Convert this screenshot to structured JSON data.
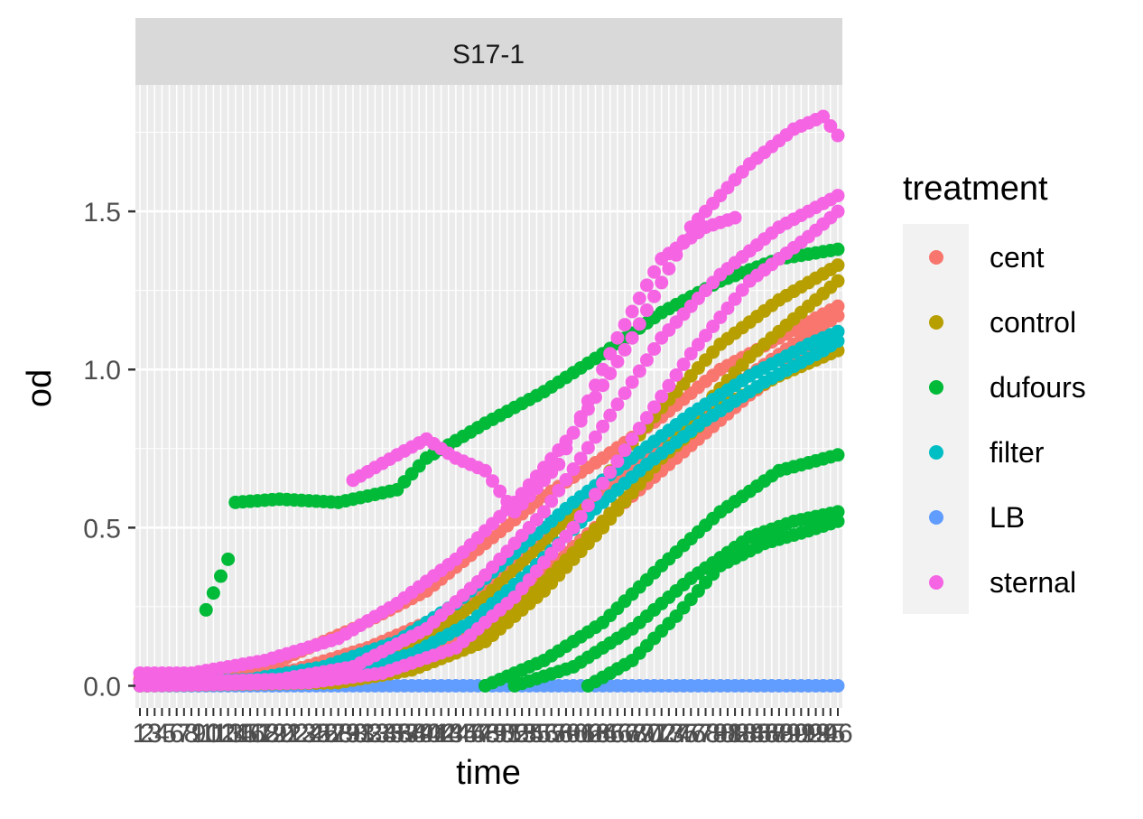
{
  "chart_data": {
    "type": "scatter",
    "facet_label": "S17-1",
    "xlabel": "time",
    "ylabel": "od",
    "ylim": [
      -0.07,
      1.9
    ],
    "yticks": [
      0.0,
      0.5,
      1.0,
      1.5
    ],
    "ytick_labels": [
      "0.0",
      "0.5",
      "1.0",
      "1.5"
    ],
    "x_categories_count": 96,
    "x_tick_labels_note": "overlapping categorical time labels (illegible)",
    "legend": {
      "title": "treatment",
      "position": "right",
      "entries": [
        {
          "label": "cent",
          "color": "#F8766D"
        },
        {
          "label": "control",
          "color": "#B79F00"
        },
        {
          "label": "dufours",
          "color": "#00BA38"
        },
        {
          "label": "filter",
          "color": "#00BFC4"
        },
        {
          "label": "LB",
          "color": "#619CFF"
        },
        {
          "label": "sternal",
          "color": "#F564E3"
        }
      ]
    },
    "grid": true,
    "series": [
      {
        "treatment": "LB",
        "curves": [
          {
            "x": [
              1,
              96
            ],
            "y": [
              0.0,
              0.0
            ]
          }
        ]
      },
      {
        "treatment": "cent",
        "curves": [
          {
            "x": [
              1,
              10,
              20,
              30,
              40,
              48,
              56,
              64,
              72,
              80,
              88,
              96
            ],
            "y": [
              0.02,
              0.03,
              0.08,
              0.18,
              0.3,
              0.45,
              0.6,
              0.72,
              0.85,
              1.0,
              1.1,
              1.2
            ]
          },
          {
            "x": [
              1,
              12,
              22,
              32,
              42,
              50,
              58,
              66,
              74,
              82,
              90,
              96
            ],
            "y": [
              0.01,
              0.02,
              0.05,
              0.12,
              0.22,
              0.35,
              0.5,
              0.65,
              0.8,
              0.95,
              1.08,
              1.17
            ]
          },
          {
            "x": [
              1,
              14,
              24,
              34,
              44,
              52,
              60,
              68,
              76,
              84,
              92,
              96
            ],
            "y": [
              0.0,
              0.01,
              0.03,
              0.08,
              0.16,
              0.28,
              0.44,
              0.6,
              0.76,
              0.92,
              1.05,
              1.12
            ]
          }
        ]
      },
      {
        "treatment": "control",
        "curves": [
          {
            "x": [
              1,
              20,
              30,
              40,
              48,
              56,
              64,
              72,
              80,
              88,
              96
            ],
            "y": [
              0.0,
              0.01,
              0.05,
              0.15,
              0.28,
              0.45,
              0.65,
              0.88,
              1.08,
              1.22,
              1.33
            ]
          },
          {
            "x": [
              1,
              24,
              34,
              44,
              52,
              60,
              68,
              76,
              84,
              92,
              96
            ],
            "y": [
              0.0,
              0.01,
              0.04,
              0.12,
              0.24,
              0.42,
              0.62,
              0.84,
              1.04,
              1.2,
              1.28
            ]
          },
          {
            "x": [
              1,
              28,
              38,
              48,
              56,
              64,
              72,
              80,
              88,
              96
            ],
            "y": [
              0.0,
              0.01,
              0.05,
              0.14,
              0.3,
              0.5,
              0.72,
              0.88,
              0.98,
              1.06
            ]
          }
        ]
      },
      {
        "treatment": "dufours",
        "curves": [
          {
            "x": [
              10,
              13,
              14,
              20,
              28,
              32,
              36,
              40,
              48,
              56,
              64,
              72,
              80,
              88,
              96
            ],
            "y": [
              0.24,
              0.4,
              0.58,
              0.59,
              0.58,
              0.6,
              0.62,
              0.72,
              0.83,
              0.93,
              1.05,
              1.18,
              1.28,
              1.35,
              1.38
            ]
          },
          {
            "x": [
              48,
              56,
              64,
              72,
              80,
              88,
              96
            ],
            "y": [
              0.0,
              0.08,
              0.2,
              0.38,
              0.55,
              0.68,
              0.73
            ]
          },
          {
            "x": [
              52,
              60,
              68,
              76,
              84,
              90,
              96
            ],
            "y": [
              0.0,
              0.06,
              0.18,
              0.34,
              0.47,
              0.52,
              0.55
            ]
          },
          {
            "x": [
              62,
              68,
              74,
              80,
              86,
              92,
              96
            ],
            "y": [
              0.0,
              0.08,
              0.22,
              0.38,
              0.45,
              0.49,
              0.52
            ]
          }
        ]
      },
      {
        "treatment": "filter",
        "curves": [
          {
            "x": [
              1,
              16,
              26,
              36,
              44,
              52,
              60,
              68,
              76,
              84,
              92,
              96
            ],
            "y": [
              0.01,
              0.02,
              0.06,
              0.14,
              0.26,
              0.42,
              0.58,
              0.72,
              0.86,
              0.98,
              1.08,
              1.12
            ]
          },
          {
            "x": [
              1,
              18,
              28,
              38,
              46,
              54,
              62,
              70,
              78,
              86,
              94,
              96
            ],
            "y": [
              0.0,
              0.01,
              0.04,
              0.1,
              0.2,
              0.36,
              0.54,
              0.7,
              0.84,
              0.96,
              1.06,
              1.09
            ]
          }
        ]
      },
      {
        "treatment": "sternal",
        "curves": [
          {
            "x": [
              1,
              8,
              18,
              28,
              36,
              44,
              52,
              60,
              68,
              76,
              84,
              90,
              94,
              96
            ],
            "y": [
              0.04,
              0.04,
              0.08,
              0.15,
              0.26,
              0.4,
              0.58,
              0.8,
              1.1,
              1.45,
              1.65,
              1.76,
              1.8,
              1.74
            ]
          },
          {
            "x": [
              1,
              20,
              30,
              40,
              48,
              56,
              64,
              72,
              80,
              88,
              96
            ],
            "y": [
              0.01,
              0.02,
              0.06,
              0.18,
              0.35,
              0.55,
              0.82,
              1.1,
              1.3,
              1.45,
              1.55
            ]
          },
          {
            "x": [
              1,
              24,
              34,
              44,
              52,
              60,
              68,
              76,
              84,
              92,
              96
            ],
            "y": [
              0.0,
              0.01,
              0.04,
              0.12,
              0.28,
              0.5,
              0.78,
              1.05,
              1.28,
              1.42,
              1.5
            ]
          },
          {
            "x": [
              30,
              36,
              40,
              44,
              48,
              52,
              58,
              62,
              66,
              72,
              78,
              82
            ],
            "y": [
              0.65,
              0.73,
              0.78,
              0.72,
              0.68,
              0.55,
              0.7,
              0.9,
              1.1,
              1.35,
              1.45,
              1.48
            ]
          }
        ]
      }
    ]
  }
}
